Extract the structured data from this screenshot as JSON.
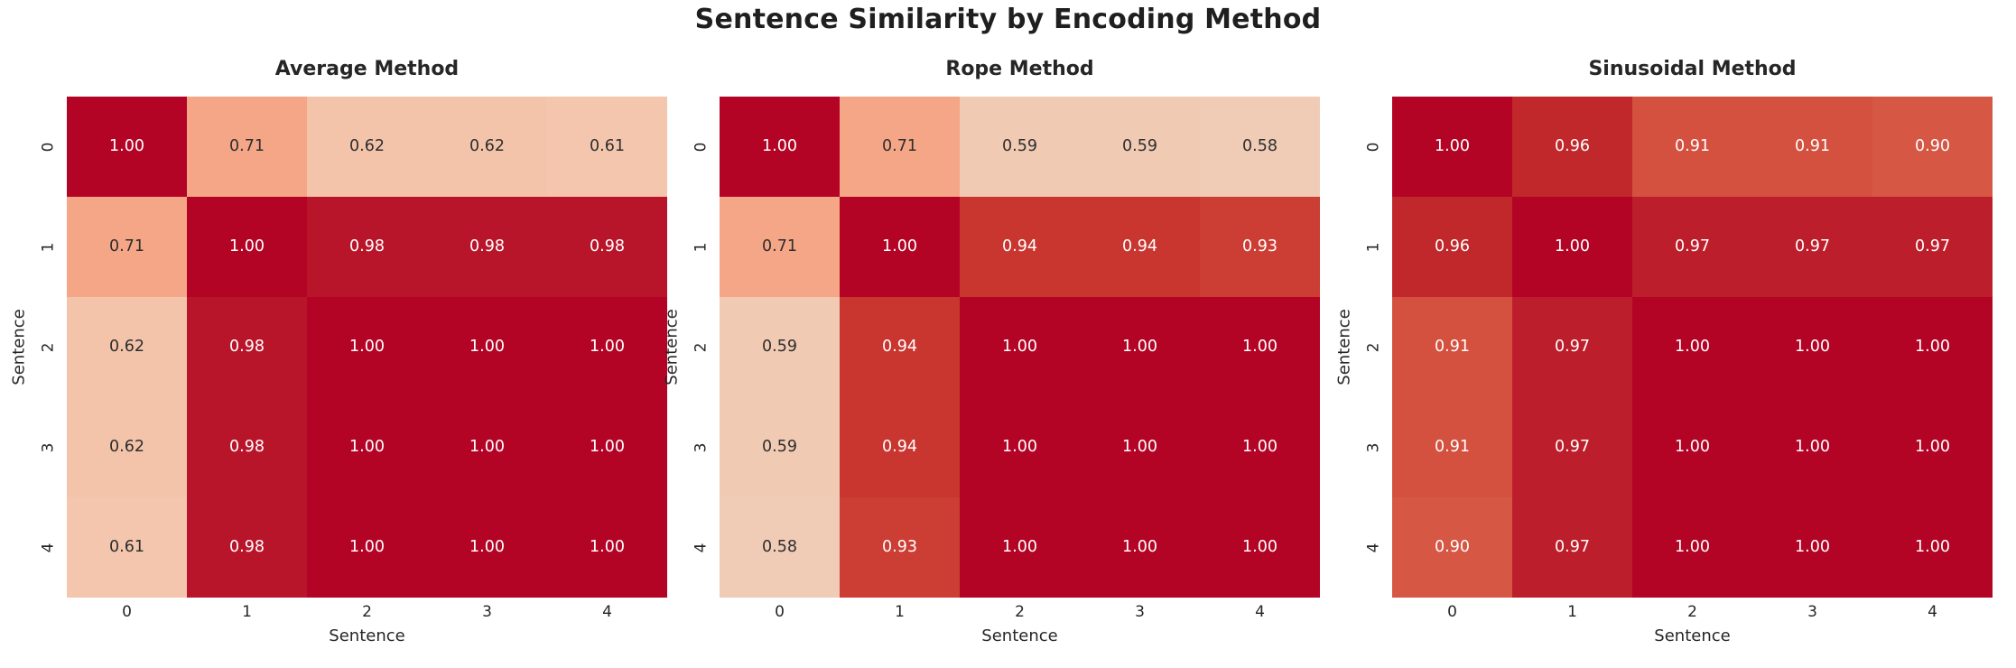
{
  "suptitle": "Sentence Similarity by Encoding Method",
  "colors": {
    "background": "#ffffff",
    "title_text": "#1f1f1f",
    "axis_text": "#262626",
    "annotation_light": "#ffffff",
    "annotation_dark": "#2e2e2e",
    "light_text_min_value": 0.9,
    "scale": {
      "1.00": "#b40426",
      "0.98": "#b9152a",
      "0.97": "#bd1e2b",
      "0.96": "#c0282c",
      "0.94": "#c93630",
      "0.93": "#cc3d33",
      "0.91": "#d4503f",
      "0.90": "#d65744",
      "0.71": "#f5a687",
      "0.62": "#f3c4aa",
      "0.61": "#f3c6ad",
      "0.59": "#f1cab3",
      "0.58": "#f0ccb6"
    }
  },
  "chart_data": [
    {
      "type": "heatmap",
      "title": "Average Method",
      "xlabel": "Sentence",
      "ylabel": "Sentence",
      "x_ticks": [
        "0",
        "1",
        "2",
        "3",
        "4"
      ],
      "y_ticks": [
        "0",
        "1",
        "2",
        "3",
        "4"
      ],
      "value_range": [
        0,
        1
      ],
      "values": [
        [
          1.0,
          0.71,
          0.62,
          0.62,
          0.61
        ],
        [
          0.71,
          1.0,
          0.98,
          0.98,
          0.98
        ],
        [
          0.62,
          0.98,
          1.0,
          1.0,
          1.0
        ],
        [
          0.62,
          0.98,
          1.0,
          1.0,
          1.0
        ],
        [
          0.61,
          0.98,
          1.0,
          1.0,
          1.0
        ]
      ]
    },
    {
      "type": "heatmap",
      "title": "Rope Method",
      "xlabel": "Sentence",
      "ylabel": "Sentence",
      "x_ticks": [
        "0",
        "1",
        "2",
        "3",
        "4"
      ],
      "y_ticks": [
        "0",
        "1",
        "2",
        "3",
        "4"
      ],
      "value_range": [
        0,
        1
      ],
      "values": [
        [
          1.0,
          0.71,
          0.59,
          0.59,
          0.58
        ],
        [
          0.71,
          1.0,
          0.94,
          0.94,
          0.93
        ],
        [
          0.59,
          0.94,
          1.0,
          1.0,
          1.0
        ],
        [
          0.59,
          0.94,
          1.0,
          1.0,
          1.0
        ],
        [
          0.58,
          0.93,
          1.0,
          1.0,
          1.0
        ]
      ]
    },
    {
      "type": "heatmap",
      "title": "Sinusoidal Method",
      "xlabel": "Sentence",
      "ylabel": "Sentence",
      "x_ticks": [
        "0",
        "1",
        "2",
        "3",
        "4"
      ],
      "y_ticks": [
        "0",
        "1",
        "2",
        "3",
        "4"
      ],
      "value_range": [
        0,
        1
      ],
      "values": [
        [
          1.0,
          0.96,
          0.91,
          0.91,
          0.9
        ],
        [
          0.96,
          1.0,
          0.97,
          0.97,
          0.97
        ],
        [
          0.91,
          0.97,
          1.0,
          1.0,
          1.0
        ],
        [
          0.91,
          0.97,
          1.0,
          1.0,
          1.0
        ],
        [
          0.9,
          0.97,
          1.0,
          1.0,
          1.0
        ]
      ]
    }
  ]
}
